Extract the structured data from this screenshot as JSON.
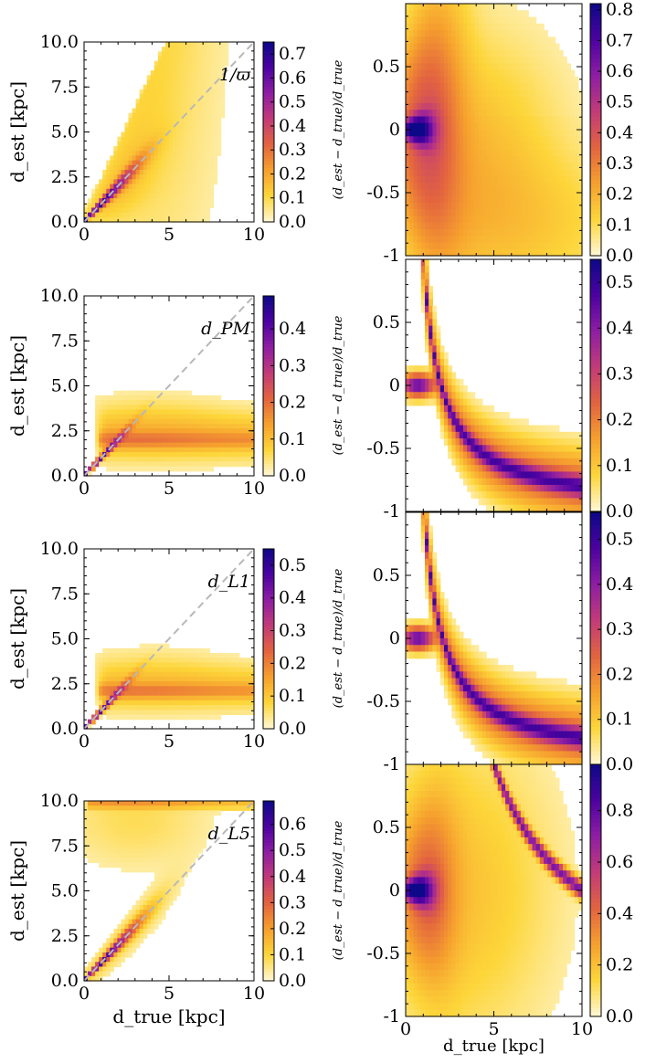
{
  "figure": {
    "common": {
      "ylabel_left": "d_est [kpc]",
      "ylabel_right": "(d_est − d_true)/d_true",
      "xlabel": "d_true [kpc]"
    },
    "left_x_ticks": [
      "0",
      "5",
      "10"
    ],
    "left_y_ticks": [
      "0.0",
      "2.5",
      "5.0",
      "7.5",
      "10.0"
    ],
    "right_x_ticks": [
      "0",
      "5",
      "10"
    ],
    "right_y_ticks_full": [
      "-1",
      "-0.5",
      "0",
      "0.5"
    ],
    "colormap": {
      "name": "plasma_r",
      "stops": [
        "#fff7d6",
        "#fdd63a",
        "#f6a02e",
        "#e3643f",
        "#c23b78",
        "#8e1ea3",
        "#4c02a1",
        "#0d0887"
      ]
    },
    "rows": [
      {
        "estimator": "1/ϖ",
        "left_colorbar_ticks": [
          "0.7",
          "0.6",
          "0.5",
          "0.4",
          "0.3",
          "0.2",
          "0.1",
          "0.0"
        ],
        "left_colorbar_max": 0.75,
        "right_colorbar_ticks": [
          "0.8",
          "0.7",
          "0.6",
          "0.5",
          "0.4",
          "0.3",
          "0.2",
          "0.1",
          "0.0"
        ],
        "right_colorbar_max": 0.82
      },
      {
        "estimator": "d_PM",
        "left_colorbar_ticks": [
          "0.4",
          "0.3",
          "0.2",
          "0.1",
          "0.0"
        ],
        "left_colorbar_max": 0.49,
        "right_colorbar_ticks": [
          "0.5",
          "0.4",
          "0.3",
          "0.2",
          "0.1",
          "0.0"
        ],
        "right_colorbar_max": 0.55
      },
      {
        "estimator": "d_L1",
        "left_colorbar_ticks": [
          "0.5",
          "0.4",
          "0.3",
          "0.2",
          "0.1",
          "0.0"
        ],
        "left_colorbar_max": 0.55,
        "right_colorbar_ticks": [
          "0.5",
          "0.4",
          "0.3",
          "0.2",
          "0.1",
          "0.0"
        ],
        "right_colorbar_max": 0.56
      },
      {
        "estimator": "d_L5",
        "left_colorbar_ticks": [
          "0.6",
          "0.5",
          "0.4",
          "0.3",
          "0.2",
          "0.1",
          "0.0"
        ],
        "left_colorbar_max": 0.69,
        "right_colorbar_ticks": [
          "0.8",
          "0.6",
          "0.4",
          "0.2",
          "0.0"
        ],
        "right_colorbar_max": 0.98
      }
    ]
  },
  "chart_data": [
    {
      "type": "heatmap",
      "panel": "row1-left",
      "annotation": "1/ϖ",
      "xlabel": "",
      "ylabel": "d_est [kpc]",
      "xlim": [
        0,
        10
      ],
      "ylim": [
        0,
        10
      ],
      "reference_line": "d_est = d_true (dashed)",
      "colorbar_range": [
        0.0,
        0.75
      ],
      "features": [
        {
          "description": "tight ridge along diagonal",
          "x_range": [
            0,
            2.5
          ],
          "peak_density": 0.75
        },
        {
          "description": "broad fan under diagonal peaking near d_est≈8 at d_true≈4",
          "peak_density": 0.02
        }
      ]
    },
    {
      "type": "heatmap",
      "panel": "row1-right",
      "xlabel": "",
      "ylabel": "(d_est − d_true)/d_true",
      "xlim": [
        0,
        10
      ],
      "ylim": [
        -1,
        1
      ],
      "colorbar_range": [
        0.0,
        0.82
      ],
      "features": [
        {
          "description": "concentrated blob at relative error 0",
          "x_range": [
            0,
            1.5
          ],
          "peak_density": 0.82
        },
        {
          "description": "wide spread from -1 to 1 fading with distance"
        }
      ]
    },
    {
      "type": "heatmap",
      "panel": "row2-left",
      "annotation": "d_PM",
      "xlabel": "",
      "ylabel": "d_est [kpc]",
      "xlim": [
        0,
        10
      ],
      "ylim": [
        0,
        10
      ],
      "colorbar_range": [
        0.0,
        0.49
      ],
      "features": [
        {
          "description": "diagonal ridge",
          "x_range": [
            0,
            2
          ]
        },
        {
          "description": "plateau at d_est ≈ 2 kpc",
          "x_range": [
            1,
            10
          ],
          "y_center": 2.0,
          "y_spread": [
            1.2,
            3.5
          ]
        }
      ]
    },
    {
      "type": "heatmap",
      "panel": "row2-right",
      "xlabel": "",
      "ylabel": "(d_est − d_true)/d_true",
      "xlim": [
        0,
        10
      ],
      "ylim": [
        -1,
        1
      ],
      "colorbar_range": [
        0.0,
        0.55
      ],
      "features": [
        {
          "description": "curve 2/d_true - 1 from +1 down to -0.8",
          "x_range": [
            1,
            10
          ]
        },
        {
          "description": "blob at 0",
          "x_range": [
            0,
            2
          ]
        }
      ]
    },
    {
      "type": "heatmap",
      "panel": "row3-left",
      "annotation": "d_L1",
      "xlabel": "",
      "ylabel": "d_est [kpc]",
      "xlim": [
        0,
        10
      ],
      "ylim": [
        0,
        10
      ],
      "colorbar_range": [
        0.0,
        0.55
      ],
      "features": [
        {
          "description": "diagonal ridge",
          "x_range": [
            0,
            2
          ]
        },
        {
          "description": "plateau at d_est ≈ 2.1 kpc",
          "x_range": [
            1,
            10
          ],
          "y_center": 2.1
        }
      ]
    },
    {
      "type": "heatmap",
      "panel": "row3-right",
      "xlabel": "",
      "ylabel": "(d_est − d_true)/d_true",
      "xlim": [
        0,
        10
      ],
      "ylim": [
        -1,
        1
      ],
      "colorbar_range": [
        0.0,
        0.56
      ],
      "features": [
        {
          "description": "curve 2.1/d_true - 1",
          "x_range": [
            1,
            10
          ]
        },
        {
          "description": "blob at 0",
          "x_range": [
            0,
            2
          ]
        }
      ]
    },
    {
      "type": "heatmap",
      "panel": "row4-left",
      "annotation": "d_L5",
      "xlabel": "d_true [kpc]",
      "ylabel": "d_est [kpc]",
      "xlim": [
        0,
        10
      ],
      "ylim": [
        0,
        10
      ],
      "colorbar_range": [
        0.0,
        0.69
      ],
      "features": [
        {
          "description": "diagonal ridge",
          "x_range": [
            0,
            3
          ]
        },
        {
          "description": "band at d_est ≈ 10 kpc",
          "x_range": [
            0,
            10
          ],
          "y_center": 9.8
        }
      ]
    },
    {
      "type": "heatmap",
      "panel": "row4-right",
      "xlabel": "d_true [kpc]",
      "ylabel": "(d_est − d_true)/d_true",
      "xlim": [
        0,
        10
      ],
      "ylim": [
        -1,
        1
      ],
      "colorbar_range": [
        0.0,
        0.98
      ],
      "features": [
        {
          "description": "blob at 0",
          "x_range": [
            0,
            1.5
          ],
          "peak_density": 0.98
        },
        {
          "description": "curve 10/d_true - 1",
          "x_range": [
            5,
            10
          ]
        }
      ]
    }
  ]
}
